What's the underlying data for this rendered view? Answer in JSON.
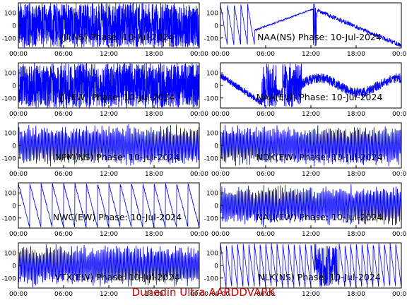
{
  "footer": {
    "text": "Dunedin Ultra AARDDVARK",
    "color": "#cc0000"
  },
  "style": {
    "trace_color": "#0000ff",
    "axis_color": "#000000"
  },
  "chart_data": [
    {
      "type": "line",
      "title": "JJI(NS) Phase: 10-Jul-2024",
      "pattern": "noise_band",
      "xticks": [
        "00:00",
        "06:00",
        "12:00",
        "18:00",
        "00:00"
      ],
      "yticks": [
        100,
        0,
        -100
      ],
      "ylim": [
        -180,
        180
      ],
      "xlim_hours": [
        0,
        24
      ]
    },
    {
      "type": "line",
      "title": "NAA(NS) Phase: 10-Jul-2024",
      "pattern": "drift_curve",
      "xticks": [
        "00:00",
        "06:00",
        "12:00",
        "18:00",
        "00:00"
      ],
      "yticks": [
        100,
        0,
        -100
      ],
      "ylim": [
        -180,
        180
      ],
      "xlim_hours": [
        0,
        24
      ]
    },
    {
      "type": "line",
      "title": "JJI(EW) Phase: 10-Jul-2024",
      "pattern": "noise_band",
      "xticks": [
        "00:00",
        "06:00",
        "12:00",
        "18:00",
        "00:00"
      ],
      "yticks": [
        100,
        0,
        -100
      ],
      "ylim": [
        -180,
        180
      ],
      "xlim_hours": [
        0,
        24
      ]
    },
    {
      "type": "line",
      "title": "NAA(EW) Phase: 10-Jul-2024",
      "pattern": "drift_noise",
      "xticks": [
        "00:00",
        "06:00",
        "12:00",
        "18:00",
        "00:00"
      ],
      "yticks": [
        100,
        0,
        -100
      ],
      "ylim": [
        -180,
        180
      ],
      "xlim_hours": [
        0,
        24
      ]
    },
    {
      "type": "line",
      "title": "NPM(NS) Phase: 10-Jul-2024",
      "pattern": "dense_oscillation",
      "xticks": [
        "00:00",
        "06:00",
        "12:00",
        "18:00",
        "00:00"
      ],
      "yticks": [
        100,
        0,
        -100
      ],
      "ylim": [
        -180,
        180
      ],
      "xlim_hours": [
        0,
        24
      ]
    },
    {
      "type": "line",
      "title": "NDK(EW) Phase: 10-Jul-2024",
      "pattern": "dense_oscillation",
      "xticks": [
        "00:00",
        "06:00",
        "12:00",
        "18:00",
        "00:00"
      ],
      "yticks": [
        100,
        0,
        -100
      ],
      "ylim": [
        -180,
        180
      ],
      "xlim_hours": [
        0,
        24
      ]
    },
    {
      "type": "line",
      "title": "NWC(EW) Phase: 10-Jul-2024",
      "pattern": "sawtooth",
      "xticks": [
        "00:00",
        "06:00",
        "12:00",
        "18:00",
        "00:00"
      ],
      "yticks": [
        100,
        0,
        -100
      ],
      "ylim": [
        -180,
        180
      ],
      "xlim_hours": [
        0,
        24
      ]
    },
    {
      "type": "line",
      "title": "NAU(EW) Phase: 10-Jul-2024",
      "pattern": "dense_oscillation",
      "xticks": [
        "00:00",
        "06:00",
        "12:00",
        "18:00",
        "00:00"
      ],
      "yticks": [
        100,
        0,
        -100
      ],
      "ylim": [
        -180,
        180
      ],
      "xlim_hours": [
        0,
        24
      ]
    },
    {
      "type": "line",
      "title": "VTX(EW) Phase: 10-Jul-2024",
      "pattern": "dense_oscillation",
      "xticks": [
        "00:00",
        "06:00",
        "12:00",
        "18:00",
        "00:00"
      ],
      "yticks": [
        100,
        0,
        -100
      ],
      "ylim": [
        -180,
        180
      ],
      "xlim_hours": [
        0,
        24
      ]
    },
    {
      "type": "line",
      "title": "NLK(NS) Phase: 10-Jul-2024",
      "pattern": "sawtooth_fast",
      "xticks": [
        "00:00",
        "06:00",
        "12:00",
        "18:00",
        "00:00"
      ],
      "yticks": [
        100,
        0,
        -100
      ],
      "ylim": [
        -180,
        180
      ],
      "xlim_hours": [
        0,
        24
      ]
    }
  ]
}
